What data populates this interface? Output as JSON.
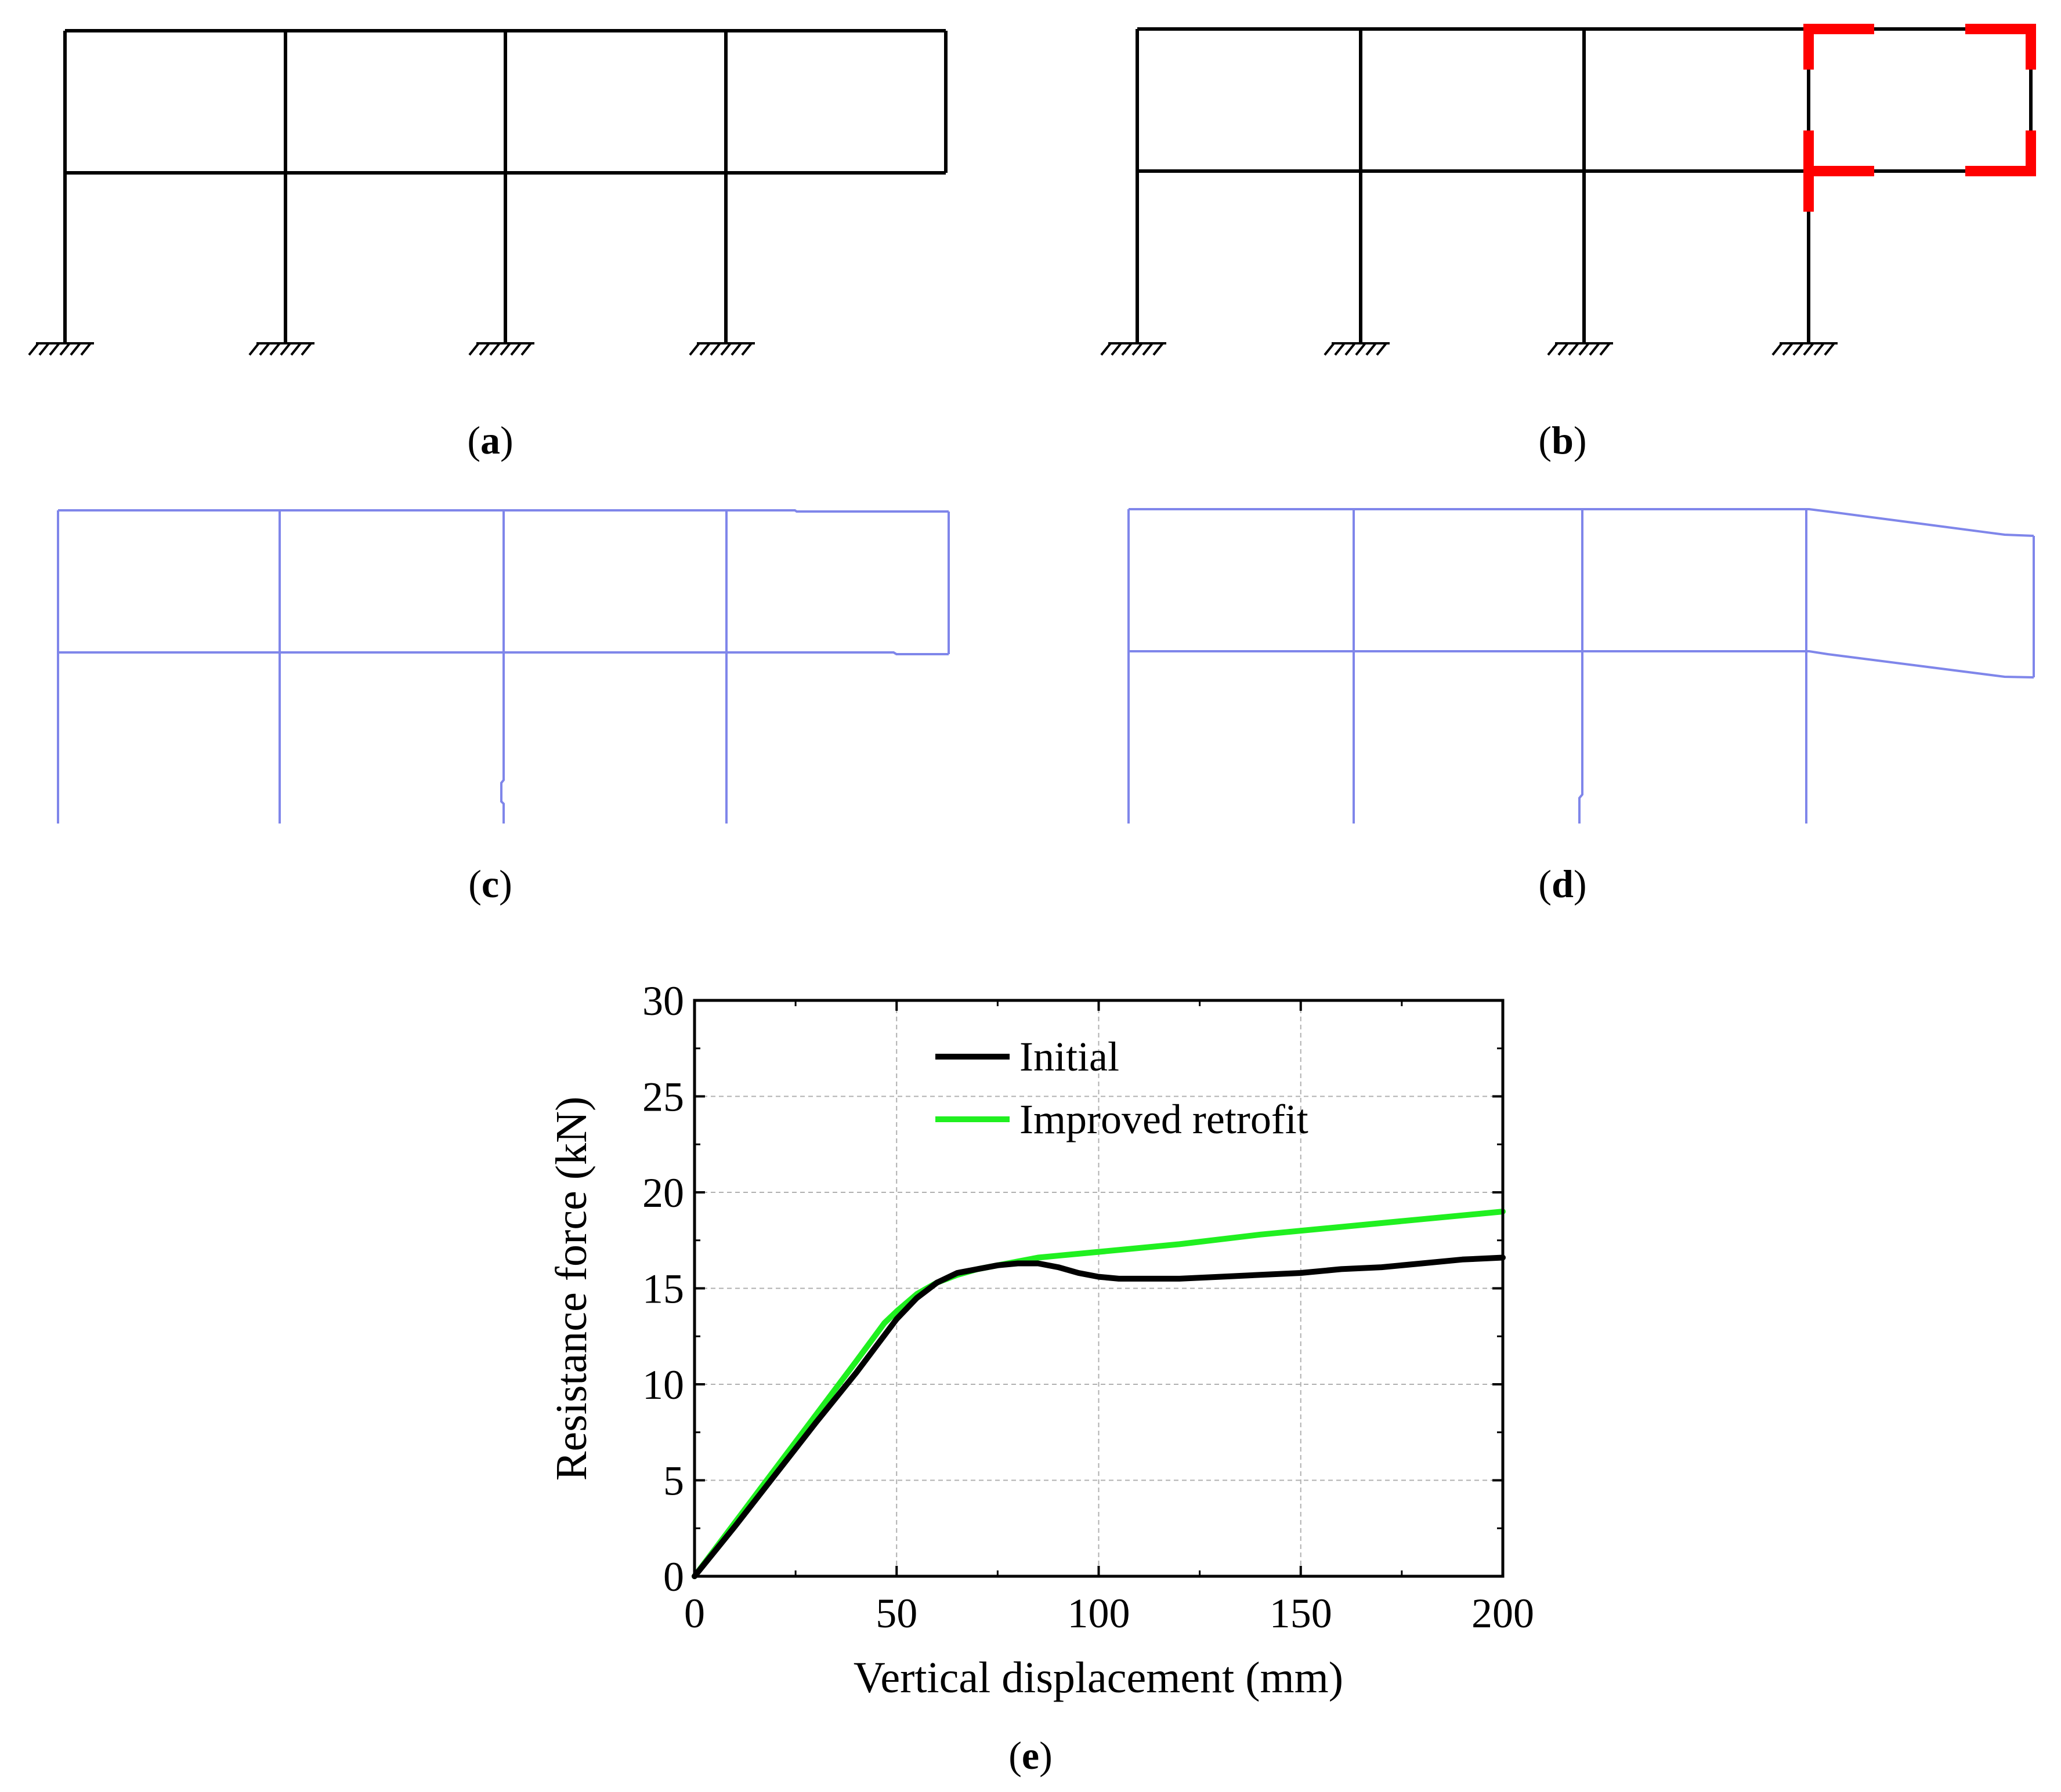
{
  "panels": {
    "a": {
      "label": "a",
      "description": "undamaged frame"
    },
    "b": {
      "label": "b",
      "description": "retrofitted frame"
    },
    "c": {
      "label": "c",
      "description": "deformed shape initial"
    },
    "d": {
      "label": "d",
      "description": "deformed shape improved retrofit"
    },
    "e": {
      "label": "e"
    }
  },
  "colors": {
    "frame": "#000000",
    "retrofit": "#ff0000",
    "deformed": "#7f86ea",
    "initial_series": "#000000",
    "improved_series": "#20f020",
    "grid": "#b0b0b0"
  },
  "chart_data": {
    "type": "line",
    "title": "",
    "xlabel": "Vertical displacement (mm)",
    "ylabel": "Resistance force (kN)",
    "xlim": [
      0,
      200
    ],
    "ylim": [
      0,
      30
    ],
    "xticks": [
      0,
      50,
      100,
      150,
      200
    ],
    "yticks": [
      0,
      5,
      10,
      15,
      20,
      25,
      30
    ],
    "grid": true,
    "legend_position": "top-center",
    "series": [
      {
        "name": "Initial",
        "color": "#000000",
        "points": [
          [
            0,
            0
          ],
          [
            10,
            2.6
          ],
          [
            20,
            5.3
          ],
          [
            30,
            8.0
          ],
          [
            40,
            10.6
          ],
          [
            50,
            13.4
          ],
          [
            55,
            14.5
          ],
          [
            60,
            15.3
          ],
          [
            65,
            15.8
          ],
          [
            70,
            16.0
          ],
          [
            75,
            16.2
          ],
          [
            80,
            16.3
          ],
          [
            85,
            16.3
          ],
          [
            90,
            16.1
          ],
          [
            95,
            15.8
          ],
          [
            100,
            15.6
          ],
          [
            105,
            15.5
          ],
          [
            110,
            15.5
          ],
          [
            120,
            15.5
          ],
          [
            130,
            15.6
          ],
          [
            140,
            15.7
          ],
          [
            150,
            15.8
          ],
          [
            160,
            16.0
          ],
          [
            170,
            16.1
          ],
          [
            180,
            16.3
          ],
          [
            190,
            16.5
          ],
          [
            200,
            16.6
          ]
        ]
      },
      {
        "name": "Improved retrofit",
        "color": "#20f020",
        "points": [
          [
            0,
            0
          ],
          [
            10,
            2.8
          ],
          [
            20,
            5.6
          ],
          [
            30,
            8.4
          ],
          [
            40,
            11.2
          ],
          [
            47,
            13.2
          ],
          [
            50,
            13.8
          ],
          [
            55,
            14.7
          ],
          [
            60,
            15.3
          ],
          [
            65,
            15.7
          ],
          [
            70,
            16.0
          ],
          [
            75,
            16.2
          ],
          [
            80,
            16.4
          ],
          [
            85,
            16.6
          ],
          [
            90,
            16.7
          ],
          [
            100,
            16.9
          ],
          [
            120,
            17.3
          ],
          [
            140,
            17.8
          ],
          [
            160,
            18.2
          ],
          [
            180,
            18.6
          ],
          [
            200,
            19.0
          ]
        ]
      }
    ]
  }
}
